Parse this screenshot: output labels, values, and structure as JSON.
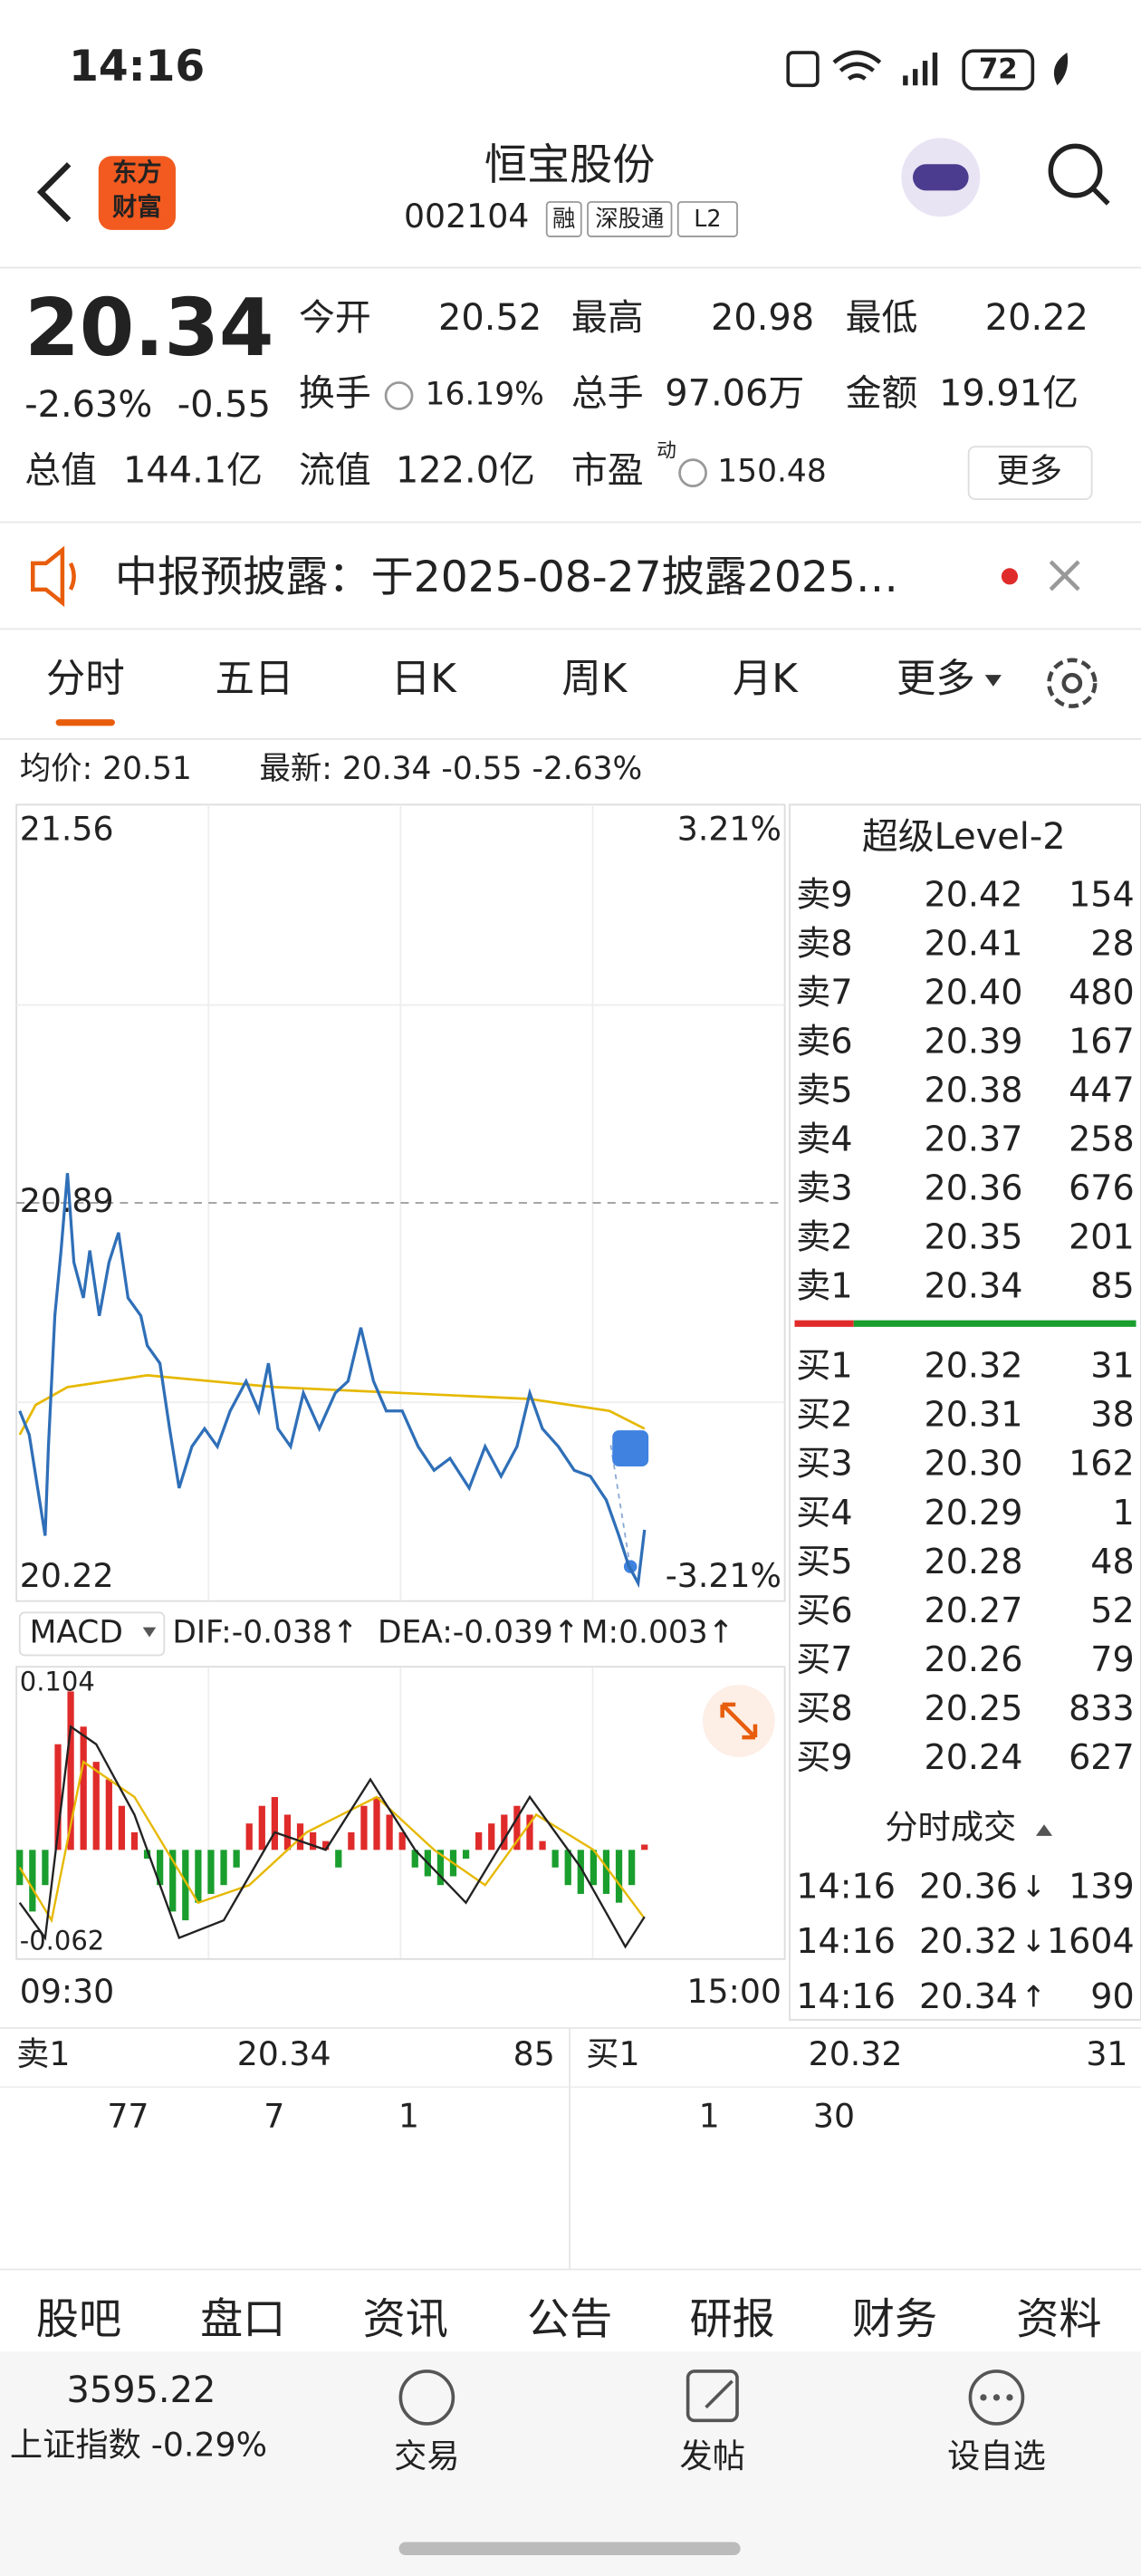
{
  "status": {
    "time": "14:16",
    "battery": "72"
  },
  "header": {
    "logo": [
      "东方",
      "财富"
    ],
    "title": "恒宝股份",
    "code": "002104",
    "tags": [
      "融",
      "深股通",
      "L2"
    ]
  },
  "quote": {
    "price": "20.34",
    "change_pct": "-2.63%",
    "change": "-0.55",
    "more": "更多",
    "stats": [
      [
        {
          "label": "今开",
          "value": "20.52"
        },
        {
          "label": "最高",
          "value": "20.98"
        },
        {
          "label": "最低",
          "value": "20.22"
        }
      ],
      [
        {
          "label": "换手",
          "value": "16.19%"
        },
        {
          "label": "总手",
          "value": "97.06万"
        },
        {
          "label": "金额",
          "value": "19.91亿"
        }
      ],
      [
        {
          "label": "总值",
          "value": "144.1亿"
        },
        {
          "label": "流值",
          "value": "122.0亿"
        },
        {
          "label": "市盈",
          "sup": "动",
          "value": "150.48"
        }
      ]
    ]
  },
  "notice": "中报预披露：于2025-08-27披露2025…",
  "tabs": [
    "分时",
    "五日",
    "日K",
    "周K",
    "月K",
    "更多"
  ],
  "info": {
    "avg": "均价: 20.51",
    "latest": "最新: 20.34 -0.55 -2.63%"
  },
  "intraday": {
    "ylim": [
      20.22,
      21.56
    ],
    "ref": 20.89,
    "pct_top": "3.21%",
    "pct_bottom": "-3.21%",
    "xlim": [
      0,
      240
    ],
    "xticks": [
      {
        "value": 0,
        "label": "09:30"
      },
      {
        "value": 240,
        "label": "15:00"
      }
    ],
    "minutes": [
      0,
      3,
      8,
      9,
      11,
      13,
      15,
      17,
      20,
      22,
      25,
      28,
      31,
      34,
      38,
      40,
      44,
      47,
      50,
      54,
      58,
      62,
      66,
      71,
      75,
      78,
      81,
      85,
      89,
      94,
      99,
      103,
      107,
      111,
      115,
      120,
      125,
      130,
      135,
      141,
      146,
      151,
      156,
      160,
      164,
      169,
      174,
      179,
      184,
      188,
      191,
      194,
      196
    ],
    "price": [
      20.54,
      20.5,
      20.33,
      20.48,
      20.7,
      20.81,
      20.94,
      20.79,
      20.73,
      20.81,
      20.7,
      20.79,
      20.84,
      20.73,
      20.7,
      20.65,
      20.62,
      20.51,
      20.41,
      20.48,
      20.51,
      20.48,
      20.54,
      20.59,
      20.54,
      20.62,
      20.51,
      20.48,
      20.57,
      20.51,
      20.57,
      20.59,
      20.68,
      20.59,
      20.54,
      20.54,
      20.48,
      20.44,
      20.46,
      20.41,
      20.48,
      20.43,
      20.48,
      20.57,
      20.51,
      20.48,
      20.44,
      20.43,
      20.39,
      20.33,
      20.28,
      20.25,
      20.34
    ],
    "avg_minutes": [
      0,
      5,
      15,
      40,
      80,
      120,
      160,
      185,
      196
    ],
    "avg": [
      20.5,
      20.55,
      20.58,
      20.6,
      20.58,
      20.57,
      20.56,
      20.54,
      20.51
    ]
  },
  "macd": {
    "label": "MACD",
    "dif": "DIF:-0.038↑",
    "dea": "DEA:-0.039↑",
    "m": "M:0.003↑",
    "ylim": [
      -0.062,
      0.104
    ],
    "yticks": [
      -0.062,
      0.104
    ],
    "hist_minutes": [
      0,
      4,
      8,
      12,
      16,
      20,
      24,
      28,
      32,
      36,
      40,
      44,
      48,
      52,
      56,
      60,
      64,
      68,
      72,
      76,
      80,
      84,
      88,
      92,
      96,
      100,
      104,
      108,
      112,
      116,
      120,
      124,
      128,
      132,
      136,
      140,
      144,
      148,
      152,
      156,
      160,
      164,
      168,
      172,
      176,
      180,
      184,
      188,
      192,
      196
    ],
    "hist": [
      -0.02,
      -0.035,
      -0.02,
      0.06,
      0.09,
      0.07,
      0.05,
      0.04,
      0.025,
      0.01,
      -0.005,
      -0.02,
      -0.035,
      -0.04,
      -0.03,
      -0.025,
      -0.02,
      -0.01,
      0.015,
      0.025,
      0.03,
      0.02,
      0.015,
      0.01,
      0.005,
      -0.01,
      0.01,
      0.025,
      0.03,
      0.02,
      0.01,
      -0.01,
      -0.015,
      -0.02,
      -0.015,
      -0.005,
      0.01,
      0.015,
      0.02,
      0.025,
      0.02,
      0.005,
      -0.01,
      -0.02,
      -0.025,
      -0.02,
      -0.025,
      -0.03,
      -0.02,
      0.003
    ],
    "dif_minutes": [
      0,
      8,
      16,
      24,
      36,
      50,
      64,
      80,
      96,
      110,
      124,
      140,
      160,
      176,
      190,
      196
    ],
    "dif_values": [
      -0.03,
      -0.05,
      0.07,
      0.06,
      0.02,
      -0.05,
      -0.04,
      0.01,
      0.0,
      0.04,
      0.0,
      -0.03,
      0.03,
      -0.01,
      -0.055,
      -0.038
    ],
    "dea_minutes": [
      0,
      10,
      20,
      36,
      56,
      72,
      90,
      112,
      130,
      146,
      162,
      180,
      196
    ],
    "dea_values": [
      -0.01,
      -0.04,
      0.05,
      0.03,
      -0.03,
      -0.02,
      0.01,
      0.03,
      0.0,
      -0.02,
      0.02,
      0.0,
      -0.039
    ]
  },
  "orderbook": {
    "title": "超级Level-2",
    "asks": [
      {
        "label": "卖9",
        "price": "20.42",
        "vol": "154"
      },
      {
        "label": "卖8",
        "price": "20.41",
        "vol": "28"
      },
      {
        "label": "卖7",
        "price": "20.40",
        "vol": "480"
      },
      {
        "label": "卖6",
        "price": "20.39",
        "vol": "167"
      },
      {
        "label": "卖5",
        "price": "20.38",
        "vol": "447"
      },
      {
        "label": "卖4",
        "price": "20.37",
        "vol": "258"
      },
      {
        "label": "卖3",
        "price": "20.36",
        "vol": "676"
      },
      {
        "label": "卖2",
        "price": "20.35",
        "vol": "201"
      },
      {
        "label": "卖1",
        "price": "20.34",
        "vol": "85"
      }
    ],
    "bids": [
      {
        "label": "买1",
        "price": "20.32",
        "vol": "31"
      },
      {
        "label": "买2",
        "price": "20.31",
        "vol": "38"
      },
      {
        "label": "买3",
        "price": "20.30",
        "vol": "162"
      },
      {
        "label": "买4",
        "price": "20.29",
        "vol": "1"
      },
      {
        "label": "买5",
        "price": "20.28",
        "vol": "48"
      },
      {
        "label": "买6",
        "price": "20.27",
        "vol": "52"
      },
      {
        "label": "买7",
        "price": "20.26",
        "vol": "79"
      },
      {
        "label": "买8",
        "price": "20.25",
        "vol": "833"
      },
      {
        "label": "买9",
        "price": "20.24",
        "vol": "627"
      }
    ],
    "trades_title": "分时成交",
    "trades": [
      {
        "time": "14:16",
        "price": "20.36",
        "dir": "↓",
        "vol": "139"
      },
      {
        "time": "14:16",
        "price": "20.32",
        "dir": "↓",
        "vol": "1604"
      },
      {
        "time": "14:16",
        "price": "20.34",
        "dir": "↑",
        "vol": "90"
      }
    ]
  },
  "queue": {
    "sell": {
      "label": "卖1",
      "price": "20.34",
      "vol": "85",
      "orders": [
        "77",
        "7",
        "1"
      ]
    },
    "buy": {
      "label": "买1",
      "price": "20.32",
      "vol": "31",
      "orders": [
        "1",
        "30"
      ]
    }
  },
  "nav": [
    "股吧",
    "盘口",
    "资讯",
    "公告",
    "研报",
    "财务",
    "资料"
  ],
  "footer": {
    "index_value": "3595.22",
    "index_name": "上证指数",
    "index_change": "-0.29%",
    "actions": [
      "交易",
      "发帖",
      "设自选"
    ]
  }
}
